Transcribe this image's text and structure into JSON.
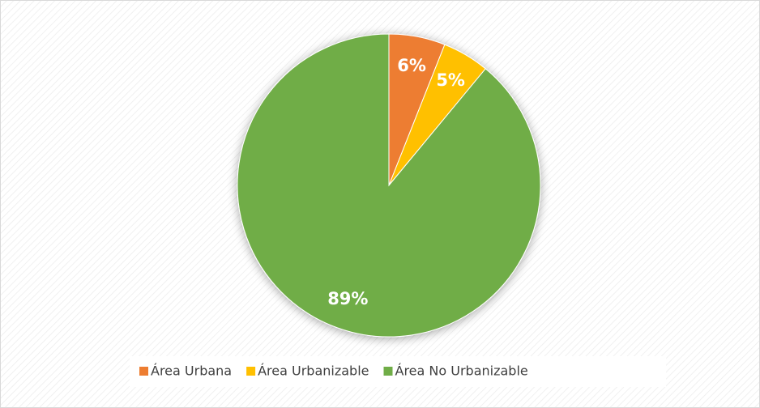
{
  "chart_data": {
    "type": "pie",
    "categories": [
      "Área Urbana",
      "Área Urbanizable",
      "Área No Urbanizable"
    ],
    "values": [
      6,
      5,
      89
    ],
    "value_labels": [
      "6%",
      "5%",
      "89%"
    ],
    "colors": [
      "#ed7d31",
      "#ffc000",
      "#70ad47"
    ],
    "legend": "bottom"
  }
}
